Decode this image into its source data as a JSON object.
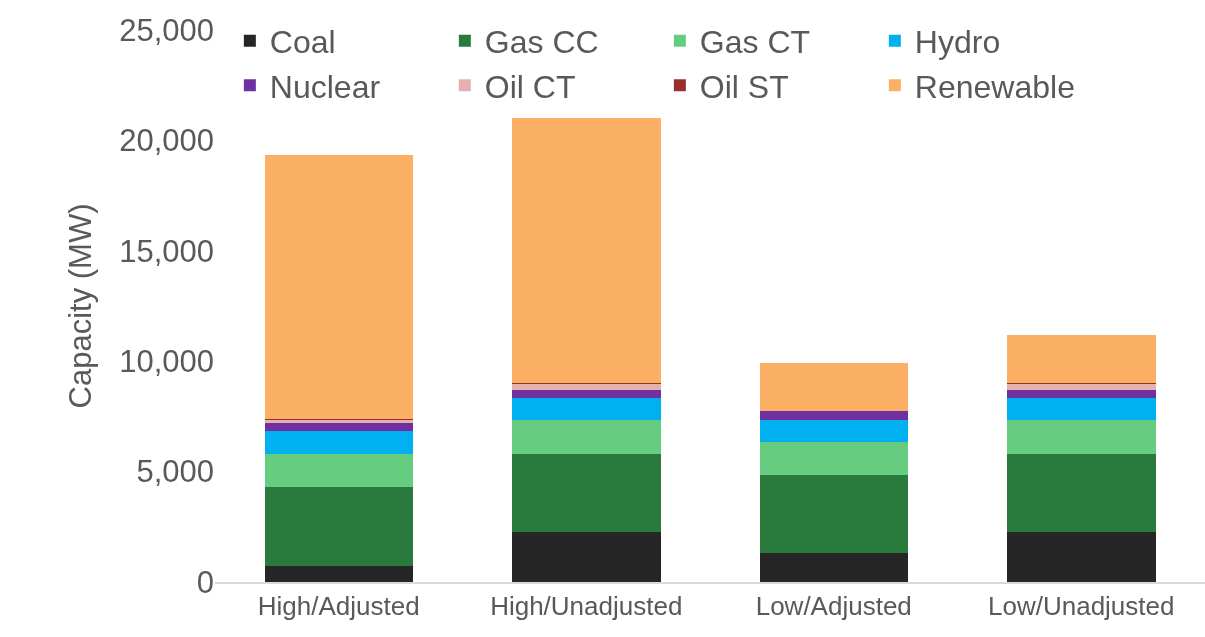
{
  "chart_data": {
    "type": "bar",
    "stacked": true,
    "ylabel": "Capacity (MW)",
    "categories": [
      "High/Adjusted",
      "High/Unadjusted",
      "Low/Adjusted",
      "Low/Unadjusted"
    ],
    "series": [
      {
        "name": "Coal",
        "color": "#262626",
        "values": [
          740,
          2280,
          1300,
          2270
        ]
      },
      {
        "name": "Gas CC",
        "color": "#2a7a3e",
        "values": [
          3560,
          3520,
          3550,
          3540
        ]
      },
      {
        "name": "Gas CT",
        "color": "#66cc7f",
        "values": [
          1500,
          1530,
          1490,
          1520
        ]
      },
      {
        "name": "Hydro",
        "color": "#00b0f0",
        "values": [
          1030,
          990,
          1000,
          990
        ]
      },
      {
        "name": "Nuclear",
        "color": "#7030a0",
        "values": [
          360,
          390,
          420,
          390
        ]
      },
      {
        "name": "Oil CT",
        "color": "#e6b0b0",
        "values": [
          150,
          240,
          null,
          240
        ]
      },
      {
        "name": "Oil ST",
        "color": "#9b2d2d",
        "values": [
          50,
          80,
          0,
          80
        ]
      },
      {
        "name": "Renewable",
        "color": "#fcb065",
        "values": [
          11950,
          11990,
          2150,
          2160
        ]
      }
    ],
    "ylim": [
      0,
      25000
    ],
    "yticks": [
      0,
      {
        "value": 5000,
        "label": "5,000"
      },
      {
        "value": 10000,
        "label": "10,000"
      },
      {
        "value": 15000,
        "label": "15,000"
      },
      {
        "value": 20000,
        "label": "20,000"
      },
      {
        "value": 25000,
        "label": "25,000"
      }
    ],
    "grid": false,
    "legend": "top"
  }
}
